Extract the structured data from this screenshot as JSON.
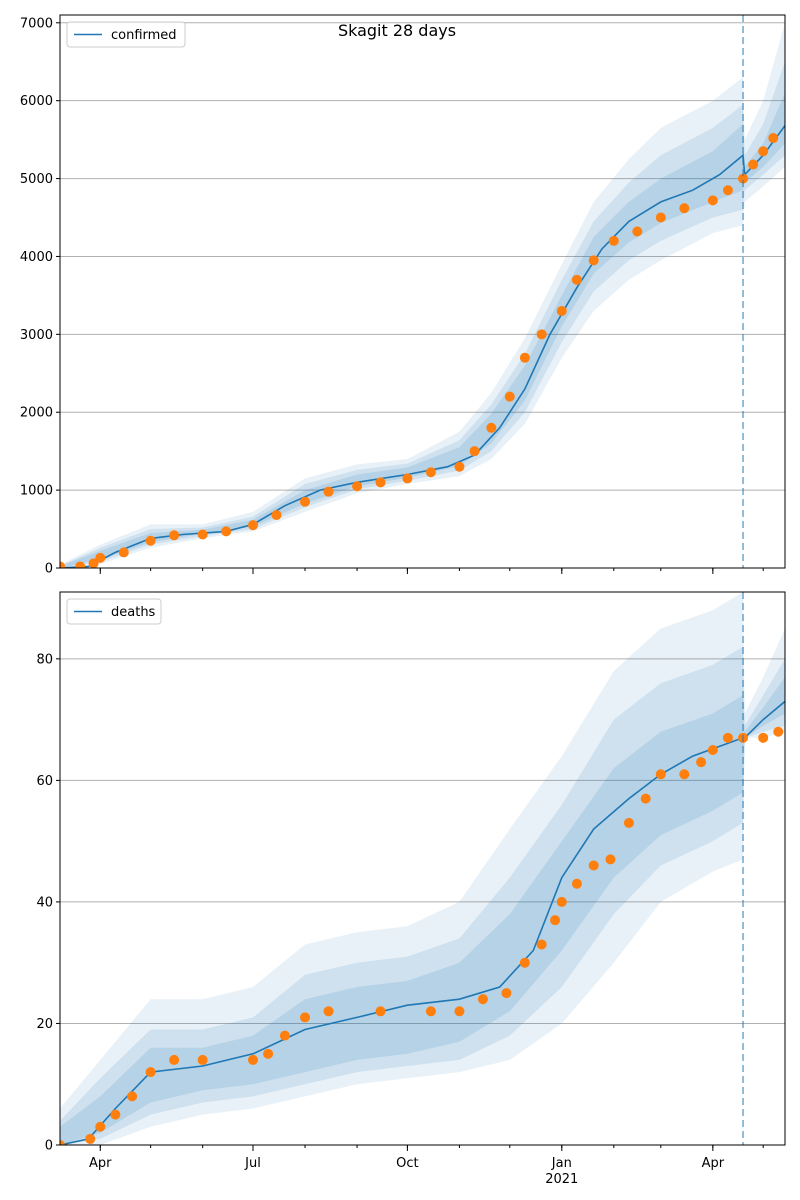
{
  "figure": {
    "title": "Skagit 28 days"
  },
  "colors": {
    "model": "#1f77b4",
    "observed": "#ff7f0e",
    "band": "#1f77b4",
    "grid": "#b0b0b0",
    "forecast_line": "#1f77b4"
  },
  "chart_data": [
    {
      "type": "line",
      "panel": "confirmed",
      "legend": [
        "confirmed"
      ],
      "legend_position": "top-left",
      "grid": "horizontal",
      "ylim": [
        0,
        7100
      ],
      "yticks": [
        0,
        1000,
        2000,
        3000,
        4000,
        5000,
        6000,
        7000
      ],
      "xlim": [
        "2020-03-08",
        "2021-05-14"
      ],
      "xticks_major": [
        {
          "date": "2020-04-01",
          "label": "Apr"
        },
        {
          "date": "2020-07-01",
          "label": "Jul"
        },
        {
          "date": "2020-10-01",
          "label": "Oct"
        },
        {
          "date": "2021-01-01",
          "label": "Jan",
          "sublabel": "2021"
        },
        {
          "date": "2021-04-01",
          "label": "Apr"
        }
      ],
      "forecast_start": "2021-04-19",
      "model_curve": {
        "x": [
          "2020-03-08",
          "2020-03-25",
          "2020-04-10",
          "2020-05-01",
          "2020-05-20",
          "2020-06-15",
          "2020-07-01",
          "2020-07-20",
          "2020-08-10",
          "2020-09-01",
          "2020-10-01",
          "2020-10-25",
          "2020-11-10",
          "2020-11-25",
          "2020-12-10",
          "2020-12-25",
          "2021-01-10",
          "2021-01-25",
          "2021-02-10",
          "2021-03-01",
          "2021-03-20",
          "2021-04-05",
          "2021-04-19",
          "2021-04-20",
          "2021-05-01",
          "2021-05-14"
        ],
        "y": [
          0,
          20,
          200,
          380,
          430,
          470,
          560,
          800,
          1000,
          1100,
          1200,
          1300,
          1450,
          1800,
          2300,
          3000,
          3600,
          4100,
          4450,
          4700,
          4850,
          5050,
          5300,
          5050,
          5300,
          5680
        ]
      },
      "observed": {
        "x": [
          "2020-03-08",
          "2020-03-20",
          "2020-03-28",
          "2020-04-01",
          "2020-04-15",
          "2020-05-01",
          "2020-05-15",
          "2020-06-01",
          "2020-06-15",
          "2020-07-01",
          "2020-07-15",
          "2020-08-01",
          "2020-08-15",
          "2020-09-01",
          "2020-09-15",
          "2020-10-01",
          "2020-10-15",
          "2020-11-01",
          "2020-11-10",
          "2020-11-20",
          "2020-12-01",
          "2020-12-10",
          "2020-12-20",
          "2021-01-01",
          "2021-01-10",
          "2021-01-20",
          "2021-02-01",
          "2021-02-15",
          "2021-03-01",
          "2021-03-15",
          "2021-04-01",
          "2021-04-10",
          "2021-04-19",
          "2021-04-25",
          "2021-05-01",
          "2021-05-07"
        ],
        "y": [
          20,
          20,
          60,
          130,
          200,
          350,
          420,
          430,
          470,
          550,
          680,
          850,
          980,
          1050,
          1100,
          1150,
          1230,
          1300,
          1500,
          1800,
          2200,
          2700,
          3000,
          3300,
          3700,
          3950,
          4200,
          4320,
          4500,
          4620,
          4720,
          4850,
          5000,
          5180,
          5350,
          5520
        ]
      },
      "uncertainty_band": {
        "x": [
          "2020-03-08",
          "2020-04-01",
          "2020-05-01",
          "2020-06-01",
          "2020-07-01",
          "2020-08-01",
          "2020-09-01",
          "2020-10-01",
          "2020-11-01",
          "2020-11-20",
          "2020-12-10",
          "2021-01-01",
          "2021-01-20",
          "2021-02-10",
          "2021-03-01",
          "2021-04-01",
          "2021-04-19",
          "2021-04-20",
          "2021-05-01",
          "2021-05-14"
        ],
        "levels": [
          {
            "lower": [
              0,
              50,
              260,
              380,
              470,
              720,
              960,
              1080,
              1180,
              1400,
              1850,
              2700,
              3300,
              3700,
              3950,
              4300,
              4400,
              4700,
              4900,
              5150
            ],
            "upper": [
              40,
              300,
              560,
              560,
              720,
              1150,
              1330,
              1400,
              1750,
              2250,
              2950,
              3900,
              4700,
              5250,
              5650,
              6000,
              6300,
              5500,
              6000,
              7000
            ]
          },
          {
            "lower": [
              0,
              80,
              300,
              410,
              500,
              780,
              1010,
              1120,
              1250,
              1500,
              2000,
              2900,
              3550,
              3950,
              4200,
              4500,
              4600,
              4850,
              5050,
              5300
            ],
            "upper": [
              30,
              260,
              500,
              520,
              660,
              1080,
              1260,
              1340,
              1640,
              2100,
              2750,
              3700,
              4450,
              4950,
              5300,
              5650,
              5950,
              5300,
              5700,
              6500
            ]
          },
          {
            "lower": [
              0,
              110,
              330,
              440,
              530,
              830,
              1050,
              1160,
              1310,
              1600,
              2150,
              3100,
              3780,
              4180,
              4430,
              4700,
              4850,
              4950,
              5150,
              5450
            ],
            "upper": [
              25,
              220,
              450,
              490,
              620,
              1000,
              1200,
              1290,
              1550,
              1980,
              2600,
              3500,
              4250,
              4700,
              5000,
              5350,
              5700,
              5150,
              5450,
              6100
            ]
          }
        ]
      }
    },
    {
      "type": "line",
      "panel": "deaths",
      "legend": [
        "deaths"
      ],
      "legend_position": "top-left",
      "grid": "horizontal",
      "ylim": [
        0,
        91
      ],
      "yticks": [
        0,
        20,
        40,
        60,
        80
      ],
      "xlim": [
        "2020-03-08",
        "2021-05-14"
      ],
      "xticks_major": [
        {
          "date": "2020-04-01",
          "label": "Apr"
        },
        {
          "date": "2020-07-01",
          "label": "Jul"
        },
        {
          "date": "2020-10-01",
          "label": "Oct"
        },
        {
          "date": "2021-01-01",
          "label": "Jan",
          "sublabel": "2021"
        },
        {
          "date": "2021-04-01",
          "label": "Apr"
        }
      ],
      "forecast_start": "2021-04-19",
      "model_curve": {
        "x": [
          "2020-03-08",
          "2020-03-25",
          "2020-04-10",
          "2020-05-01",
          "2020-06-01",
          "2020-07-01",
          "2020-08-01",
          "2020-09-01",
          "2020-10-01",
          "2020-11-01",
          "2020-11-25",
          "2020-12-15",
          "2021-01-01",
          "2021-01-20",
          "2021-02-10",
          "2021-03-01",
          "2021-03-20",
          "2021-04-19",
          "2021-04-20",
          "2021-05-01",
          "2021-05-14"
        ],
        "y": [
          0,
          1,
          6,
          12,
          13,
          15,
          19,
          21,
          23,
          24,
          26,
          32,
          44,
          52,
          57,
          61,
          64,
          67,
          67,
          70,
          73
        ]
      },
      "observed": {
        "x": [
          "2020-03-08",
          "2020-03-26",
          "2020-04-01",
          "2020-04-10",
          "2020-04-20",
          "2020-05-01",
          "2020-05-15",
          "2020-06-01",
          "2020-07-01",
          "2020-07-10",
          "2020-07-20",
          "2020-08-01",
          "2020-08-15",
          "2020-09-15",
          "2020-10-15",
          "2020-11-01",
          "2020-11-15",
          "2020-11-29",
          "2020-12-10",
          "2020-12-20",
          "2020-12-28",
          "2021-01-01",
          "2021-01-10",
          "2021-01-20",
          "2021-01-30",
          "2021-02-10",
          "2021-02-20",
          "2021-03-01",
          "2021-03-15",
          "2021-03-25",
          "2021-04-01",
          "2021-04-10",
          "2021-04-19",
          "2021-05-01",
          "2021-05-10"
        ],
        "y": [
          0,
          1,
          3,
          5,
          8,
          12,
          14,
          14,
          14,
          15,
          18,
          21,
          22,
          22,
          22,
          22,
          24,
          25,
          30,
          33,
          37,
          40,
          43,
          46,
          47,
          53,
          57,
          61,
          61,
          63,
          65,
          67,
          67,
          67,
          68
        ]
      },
      "uncertainty_band": {
        "x": [
          "2020-03-08",
          "2020-04-01",
          "2020-05-01",
          "2020-06-01",
          "2020-07-01",
          "2020-08-01",
          "2020-09-01",
          "2020-10-01",
          "2020-11-01",
          "2020-12-01",
          "2021-01-01",
          "2021-02-01",
          "2021-03-01",
          "2021-04-01",
          "2021-04-19",
          "2021-04-20",
          "2021-05-01",
          "2021-05-14"
        ],
        "levels": [
          {
            "lower": [
              0,
              0,
              3,
              5,
              6,
              8,
              10,
              11,
              12,
              14,
              20,
              30,
              40,
              45,
              47,
              67,
              67,
              68
            ],
            "upper": [
              6,
              14,
              24,
              24,
              26,
              33,
              35,
              36,
              40,
              52,
              64,
              78,
              85,
              88,
              91,
              71,
              77,
              85
            ]
          },
          {
            "lower": [
              0,
              1,
              5,
              7,
              8,
              10,
              12,
              13,
              14,
              18,
              26,
              38,
              46,
              50,
              53,
              67,
              68,
              69
            ],
            "upper": [
              4,
              11,
              19,
              19,
              21,
              28,
              30,
              31,
              34,
              44,
              56,
              70,
              76,
              79,
              82,
              69,
              74,
              80
            ]
          },
          {
            "lower": [
              0,
              2,
              7,
              9,
              10,
              12,
              14,
              15,
              17,
              22,
              32,
              44,
              51,
              55,
              58,
              67,
              69,
              71
            ],
            "upper": [
              3,
              8,
              16,
              16,
              18,
              24,
              26,
              27,
              30,
              38,
              50,
              62,
              68,
              71,
              74,
              68,
              72,
              77
            ]
          }
        ]
      }
    }
  ]
}
